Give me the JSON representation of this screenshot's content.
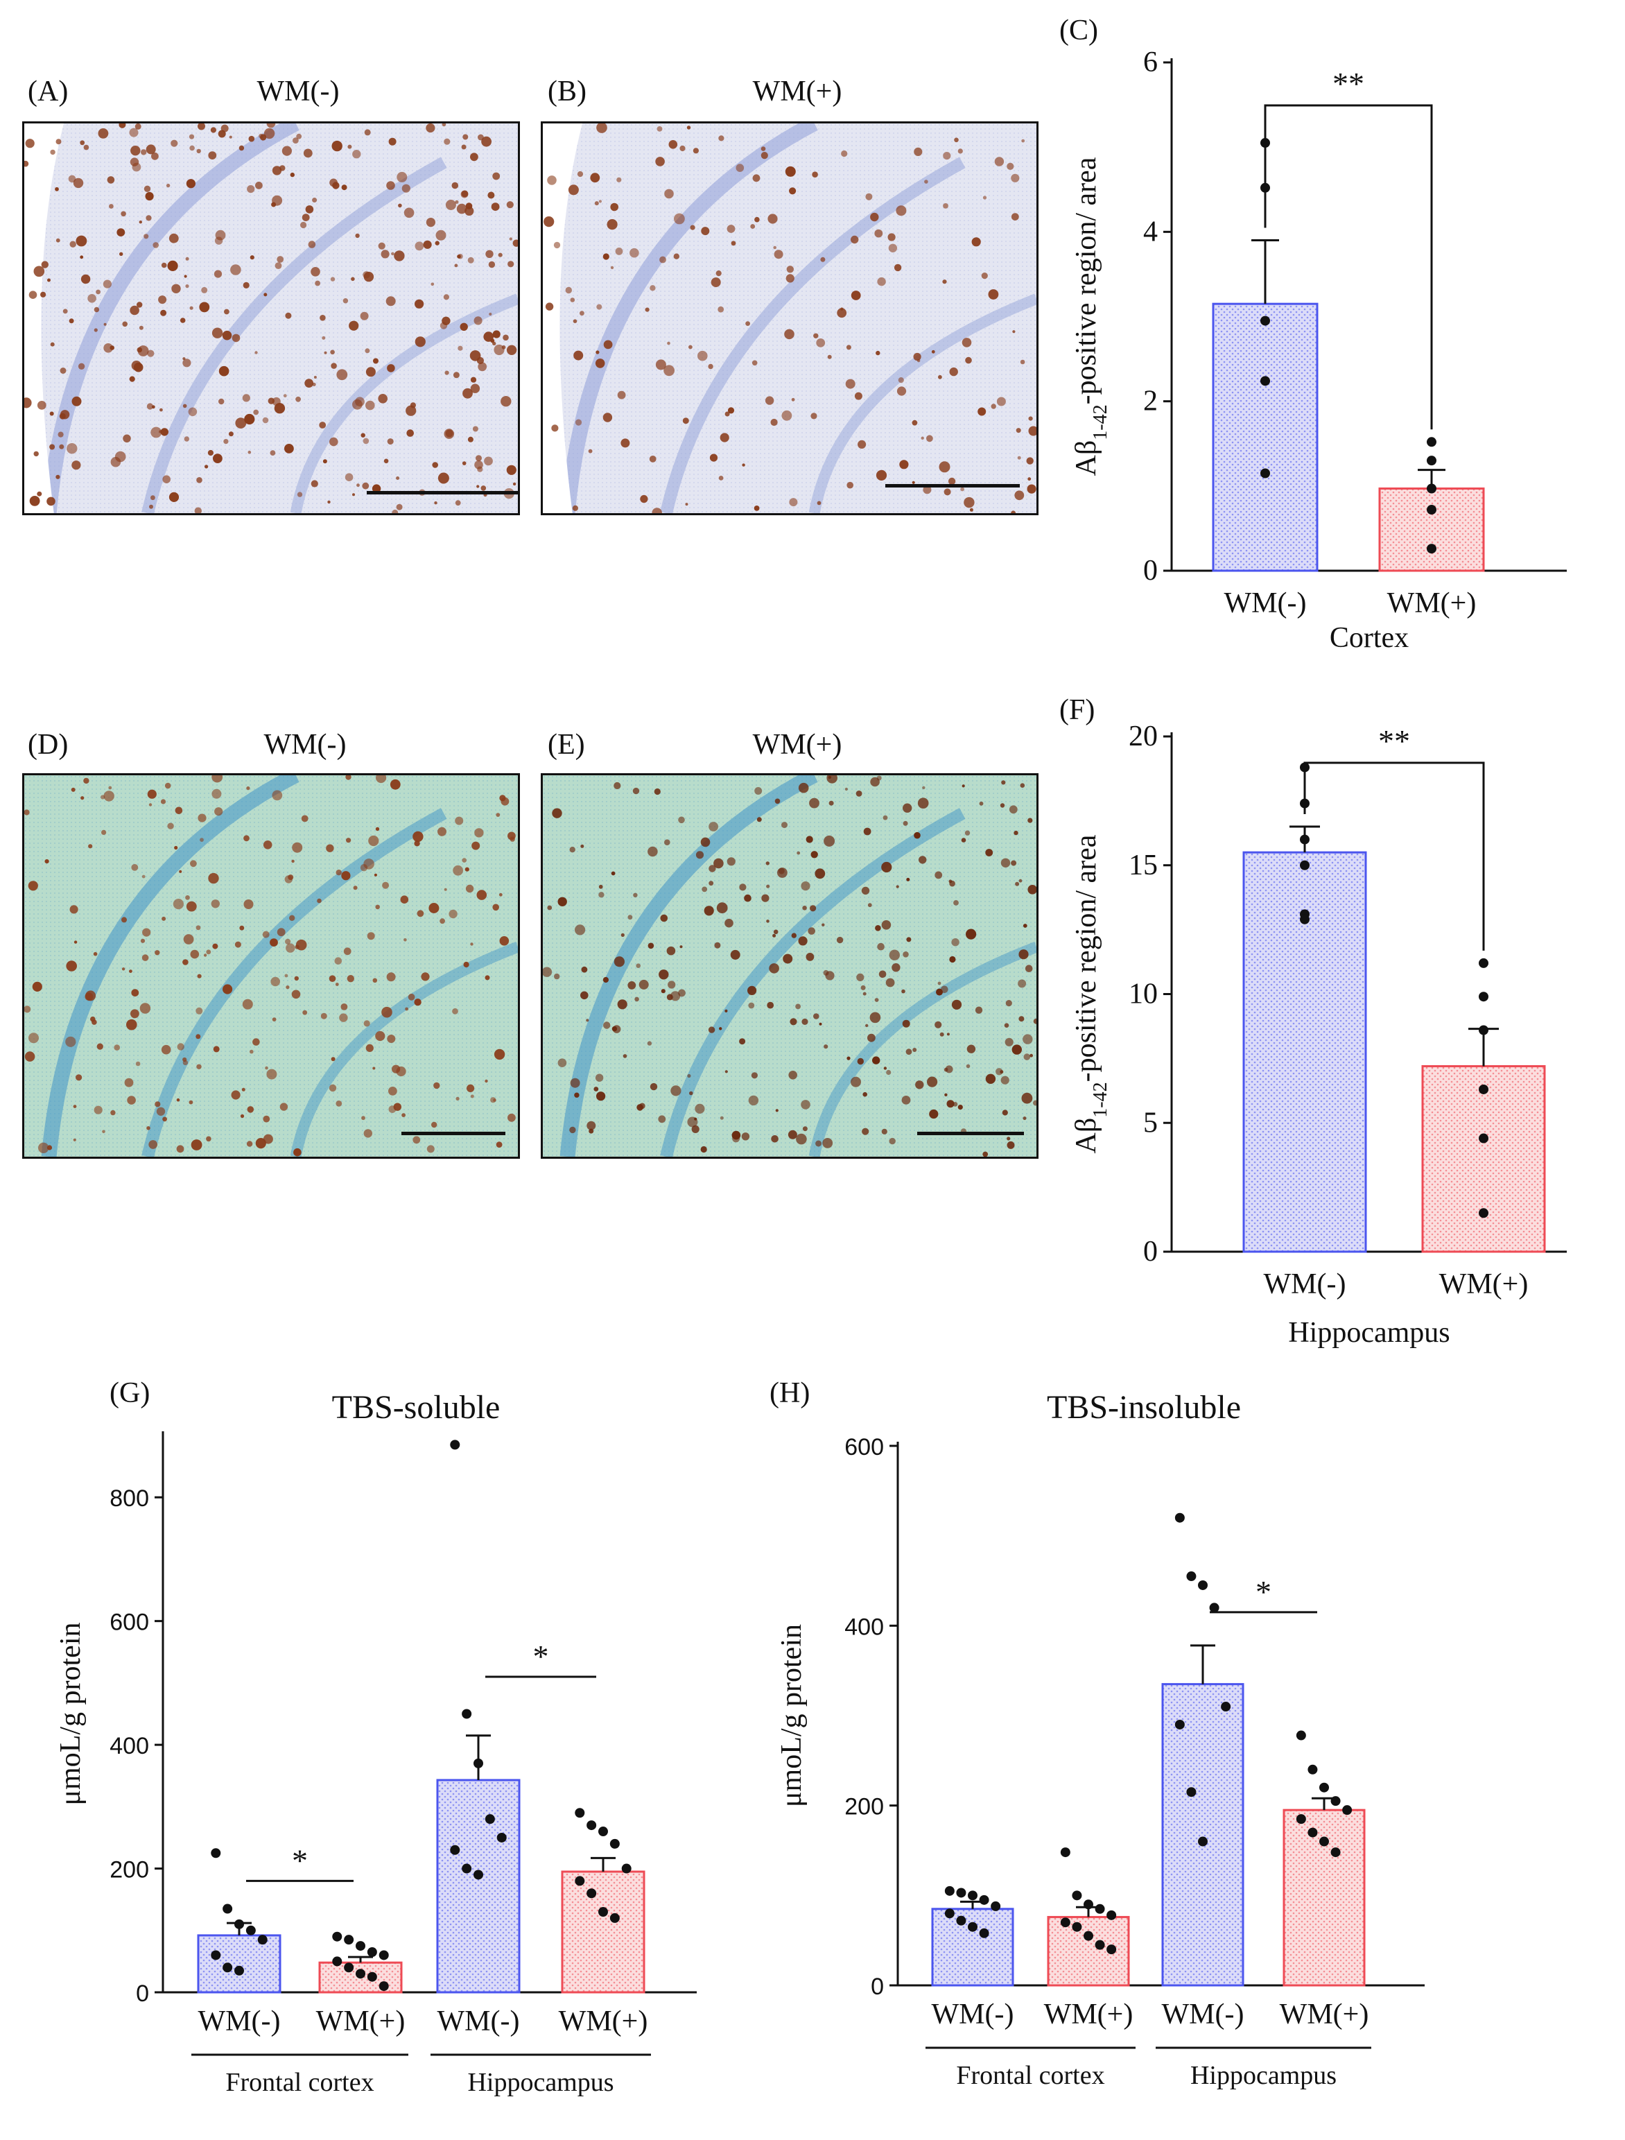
{
  "panels": {
    "A": {
      "letter": "(A)",
      "title": "WM(-)"
    },
    "B": {
      "letter": "(B)",
      "title": "WM(+)"
    },
    "C": {
      "letter": "(C)"
    },
    "D": {
      "letter": "(D)",
      "title": "WM(-)"
    },
    "E": {
      "letter": "(E)",
      "title": "WM(+)"
    },
    "F": {
      "letter": "(F)"
    },
    "G": {
      "letter": "(G)"
    },
    "H": {
      "letter": "(H)"
    }
  },
  "colors": {
    "blue": "#4b55ee",
    "red": "#ee4b55",
    "blue_fill": "#dcdcf8",
    "red_fill": "#fbdede",
    "stain_bg_AB": "#e4e6f2",
    "stain_bg_DE": "#b8dccb",
    "plaque": "#8a3d1c"
  },
  "chart_data": [
    {
      "id": "C",
      "type": "bar",
      "title": "",
      "categories": [
        "WM(-)",
        "WM(+)"
      ],
      "values": [
        3.15,
        0.97
      ],
      "errors": [
        0.75,
        0.22
      ],
      "points": [
        [
          5.05,
          4.52,
          2.95,
          2.24,
          1.15
        ],
        [
          1.52,
          1.3,
          0.97,
          0.72,
          0.26
        ]
      ],
      "ylim": [
        0,
        6
      ],
      "yticks": [
        "0",
        "2",
        "4",
        "6"
      ],
      "ylabel_main": "Aβ",
      "ylabel_sub": "1-42",
      "ylabel_rest": "-positive region/ area",
      "xlabel": "Cortex",
      "significance": "**"
    },
    {
      "id": "F",
      "type": "bar",
      "title": "",
      "categories": [
        "WM(-)",
        "WM(+)"
      ],
      "values": [
        15.5,
        7.2
      ],
      "errors": [
        1.0,
        1.45
      ],
      "points": [
        [
          18.8,
          17.4,
          16.0,
          15.0,
          13.1,
          12.9
        ],
        [
          11.2,
          9.9,
          8.6,
          6.3,
          4.4,
          1.5
        ]
      ],
      "ylim": [
        0,
        20
      ],
      "yticks": [
        "0",
        "5",
        "10",
        "15",
        "20"
      ],
      "ylabel_main": "Aβ",
      "ylabel_sub": "1-42",
      "ylabel_rest": "-positive region/ area",
      "xlabel": "Hippocampus",
      "significance": "**"
    },
    {
      "id": "G",
      "type": "bar",
      "title": "TBS-soluble",
      "categories": [
        "WM(-)",
        "WM(+)",
        "WM(-)",
        "WM(+)"
      ],
      "groups": [
        "Frontal cortex",
        "Hippocampus"
      ],
      "values": [
        92,
        48,
        343,
        195
      ],
      "errors": [
        20,
        9,
        72,
        22
      ],
      "points": [
        [
          225,
          135,
          110,
          100,
          85,
          60,
          40,
          35
        ],
        [
          90,
          85,
          75,
          65,
          60,
          50,
          40,
          30,
          25,
          10
        ],
        [
          885,
          450,
          370,
          280,
          250,
          230,
          200,
          190
        ],
        [
          290,
          270,
          260,
          240,
          200,
          180,
          160,
          130,
          120
        ]
      ],
      "ylim": [
        0,
        900
      ],
      "yticks": [
        "0",
        "200",
        "400",
        "600",
        "800"
      ],
      "ylabel": "μmoL/g protein",
      "significance_pairs": [
        {
          "from": 0,
          "to": 1,
          "label": "*",
          "y": 180
        },
        {
          "from": 2,
          "to": 3,
          "label": "*",
          "y": 510
        }
      ]
    },
    {
      "id": "H",
      "type": "bar",
      "title": "TBS-insoluble",
      "categories": [
        "WM(-)",
        "WM(+)",
        "WM(-)",
        "WM(+)"
      ],
      "groups": [
        "Frontal cortex",
        "Hippocampus"
      ],
      "values": [
        85,
        76,
        335,
        195
      ],
      "errors": [
        8,
        11,
        43,
        13
      ],
      "points": [
        [
          105,
          103,
          100,
          95,
          88,
          80,
          72,
          65,
          58
        ],
        [
          148,
          100,
          90,
          85,
          78,
          70,
          65,
          55,
          45,
          40
        ],
        [
          520,
          455,
          445,
          420,
          310,
          290,
          215,
          160
        ],
        [
          278,
          240,
          220,
          205,
          195,
          185,
          170,
          160,
          148
        ]
      ],
      "ylim": [
        0,
        600
      ],
      "yticks": [
        "0",
        "200",
        "400",
        "600"
      ],
      "ylabel": "μmoL/g protein",
      "significance_pairs": [
        {
          "from": 2,
          "to": 3,
          "label": "*",
          "y": 415
        }
      ]
    }
  ]
}
